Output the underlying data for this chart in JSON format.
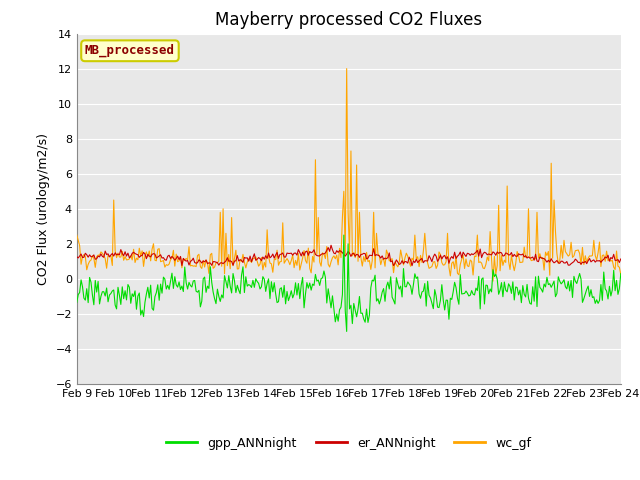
{
  "title": "Mayberry processed CO2 Fluxes",
  "ylabel": "CO2 Flux (urology/m2/s)",
  "ylim": [
    -6,
    14
  ],
  "yticks": [
    -6,
    -4,
    -2,
    0,
    2,
    4,
    6,
    8,
    10,
    12,
    14
  ],
  "background_color": "#e8e8e8",
  "fig_background": "#ffffff",
  "grid_color": "#ffffff",
  "title_fontsize": 12,
  "label_fontsize": 9,
  "tick_fontsize": 8,
  "n_points": 384,
  "x_start": 9.0,
  "x_end": 24.0,
  "xtick_positions": [
    9,
    10,
    11,
    12,
    13,
    14,
    15,
    16,
    17,
    18,
    19,
    20,
    21,
    22,
    23,
    24
  ],
  "xtick_labels": [
    "Feb 9",
    "Feb 10",
    "Feb 11",
    "Feb 12",
    "Feb 13",
    "Feb 14",
    "Feb 15",
    "Feb 16",
    "Feb 17",
    "Feb 18",
    "Feb 19",
    "Feb 20",
    "Feb 21",
    "Feb 22",
    "Feb 23",
    "Feb 24"
  ],
  "gpp_color": "#00dd00",
  "er_color": "#cc0000",
  "wc_color": "#ffa500",
  "legend_labels": [
    "gpp_ANNnight",
    "er_ANNnight",
    "wc_gf"
  ],
  "inset_text": "MB_processed",
  "inset_text_color": "#8b0000",
  "inset_bg_color": "#ffffcc",
  "inset_edge_color": "#cccc00",
  "linewidth": 0.8,
  "seed": 42
}
